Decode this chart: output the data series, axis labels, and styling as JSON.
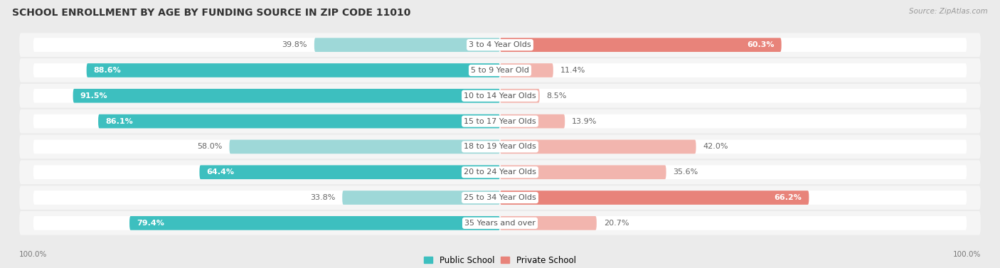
{
  "title": "SCHOOL ENROLLMENT BY AGE BY FUNDING SOURCE IN ZIP CODE 11010",
  "source": "Source: ZipAtlas.com",
  "categories": [
    "3 to 4 Year Olds",
    "5 to 9 Year Old",
    "10 to 14 Year Olds",
    "15 to 17 Year Olds",
    "18 to 19 Year Olds",
    "20 to 24 Year Olds",
    "25 to 34 Year Olds",
    "35 Years and over"
  ],
  "public_values": [
    39.8,
    88.6,
    91.5,
    86.1,
    58.0,
    64.4,
    33.8,
    79.4
  ],
  "private_values": [
    60.3,
    11.4,
    8.5,
    13.9,
    42.0,
    35.6,
    66.2,
    20.7
  ],
  "public_color": "#3DBFBF",
  "private_color": "#E8837A",
  "public_color_light": "#9ED8D8",
  "private_color_light": "#F2B5AE",
  "bg_color": "#EBEBEB",
  "row_bg_color": "#F5F5F5",
  "bar_bg_color": "#FFFFFF",
  "title_fontsize": 10,
  "label_fontsize": 8.0,
  "axis_label_fontsize": 7.5,
  "legend_fontsize": 8.5,
  "x_left_label": "100.0%",
  "x_right_label": "100.0%",
  "pub_threshold": 60,
  "priv_threshold": 60
}
